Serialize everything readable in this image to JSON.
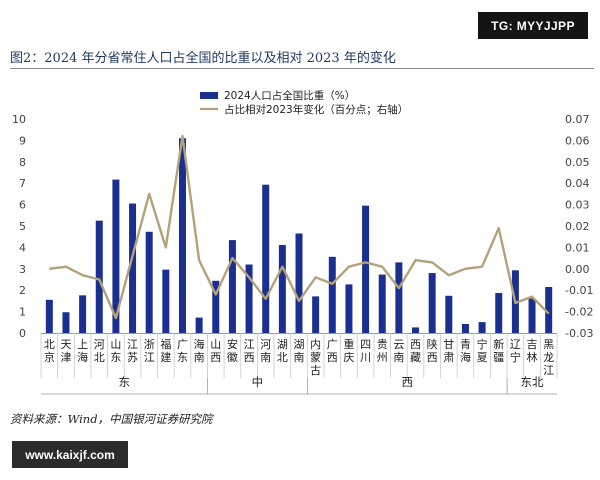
{
  "watermark_top": "TG: MYYJJPP",
  "watermark_bottom": "www.kaixjf.com",
  "figure_title": "图2：2024 年分省常住人口占全国的比重以及相对 2023 年的变化",
  "source": "资料来源：Wind，中国银河证券研究院",
  "colors": {
    "bar": "#1a2f8f",
    "line": "#b3a27a",
    "title": "#1f3864",
    "axis": "#444444"
  },
  "chart_data": {
    "type": "bar",
    "legend_position": "top-center",
    "left_axis": {
      "ylim": [
        0,
        10
      ],
      "ticks": [
        "0",
        "1",
        "2",
        "3",
        "4",
        "5",
        "6",
        "7",
        "8",
        "9",
        "10"
      ]
    },
    "right_axis": {
      "ylim": [
        -0.03,
        0.07
      ],
      "ticks": [
        "-0.03",
        "-0.02",
        "-0.01",
        "0.00",
        "0.01",
        "0.02",
        "0.03",
        "0.04",
        "0.05",
        "0.06",
        "0.07"
      ]
    },
    "categories": [
      "北京",
      "天津",
      "上海",
      "河北",
      "山东",
      "江苏",
      "浙江",
      "福建",
      "广东",
      "海南",
      "山西",
      "安徽",
      "江西",
      "河南",
      "湖北",
      "湖南",
      "内蒙古",
      "广西",
      "重庆",
      "四川",
      "贵州",
      "云南",
      "西藏",
      "陕西",
      "甘肃",
      "青海",
      "宁夏",
      "新疆",
      "辽宁",
      "吉林",
      "黑龙江"
    ],
    "series": [
      {
        "name": "2024人口占全国比重（%）",
        "type": "bar",
        "axis": "left",
        "values": [
          1.55,
          0.97,
          1.76,
          5.25,
          7.17,
          6.05,
          4.73,
          2.96,
          9.1,
          0.72,
          2.44,
          4.34,
          3.2,
          6.93,
          4.11,
          4.65,
          1.71,
          3.56,
          2.27,
          5.95,
          2.73,
          3.3,
          0.26,
          2.8,
          1.74,
          0.42,
          0.51,
          1.87,
          2.93,
          1.61,
          2.15
        ]
      },
      {
        "name": "占比相对2023年变化（百分点；右轴）",
        "type": "line",
        "axis": "right",
        "values": [
          0.0,
          0.001,
          -0.003,
          -0.005,
          -0.023,
          0.006,
          0.035,
          0.01,
          0.062,
          0.004,
          -0.012,
          0.005,
          -0.004,
          -0.014,
          0.001,
          -0.015,
          -0.004,
          -0.007,
          0.001,
          0.003,
          0.001,
          -0.009,
          0.004,
          0.003,
          -0.003,
          0.0,
          0.001,
          0.019,
          -0.016,
          -0.013,
          -0.021
        ]
      }
    ],
    "groups": [
      {
        "label": "东",
        "start": 0,
        "end": 9
      },
      {
        "label": "中",
        "start": 10,
        "end": 15
      },
      {
        "label": "西",
        "start": 16,
        "end": 27
      },
      {
        "label": "东北",
        "start": 28,
        "end": 30
      }
    ]
  }
}
